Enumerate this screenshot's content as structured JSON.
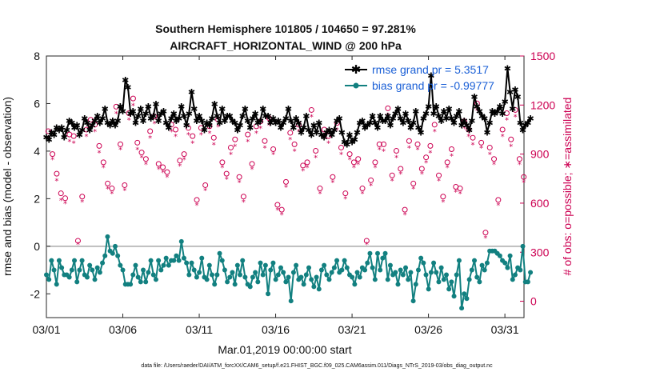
{
  "chart_data": {
    "type": "line",
    "title_line1": "Southern Hemisphere 101805 / 104650 = 97.281%",
    "title_line2": "AIRCRAFT_HORIZONTAL_WIND @ 200 hPa",
    "xlabel": "Mar.01,2019 00:00:00 start",
    "ylabel": "rmse and bias (model - observation)",
    "y2label": "# of obs: o=possible; ∗=assimilated",
    "footnote": "data file: /Users/raeder/DAI/ATM_forcXX/CAM6_setup/f.e21.FHIST_BGC.f09_025.CAM6assim.011/Diags_NTrS_2019-03/obs_diag_output.nc",
    "x_range": [
      0,
      31.25
    ],
    "ylim": [
      -3,
      8
    ],
    "y2lim": [
      -100,
      1500
    ],
    "x_tick_labels": [
      "03/01",
      "03/06",
      "03/11",
      "03/16",
      "03/21",
      "03/26",
      "03/31"
    ],
    "x_tick_days": [
      0,
      5,
      10,
      15,
      20,
      25,
      30
    ],
    "y_ticks": [
      "-2",
      "0",
      "2",
      "4",
      "6",
      "8"
    ],
    "y_tick_values": [
      -2,
      0,
      2,
      4,
      6,
      8
    ],
    "y2_ticks": [
      "0",
      "300",
      "600",
      "900",
      "1200",
      "1500"
    ],
    "y2_tick_values": [
      0,
      300,
      600,
      900,
      1200,
      1500
    ],
    "colors": {
      "rmse": "#000000",
      "bias": "#128080",
      "obs": "#cc0052",
      "legend_text": "#1a5fd6",
      "zero_line": "#aaaaaa"
    },
    "series": [
      {
        "name": "rmse grand pr = 5.3517",
        "values": [
          4.6,
          4.5,
          4.8,
          4.7,
          5.0,
          4.9,
          5.0,
          4.6,
          4.9,
          5.3,
          5.2,
          5.0,
          5.1,
          4.7,
          4.9,
          5.4,
          5.2,
          4.9,
          5.1,
          5.3,
          5.5,
          5.2,
          5.4,
          5.8,
          5.2,
          5.1,
          5.3,
          5.1,
          5.3,
          5.9,
          5.7,
          7.0,
          6.7,
          5.6,
          5.7,
          5.2,
          5.5,
          5.8,
          5.3,
          5.6,
          5.9,
          5.4,
          5.5,
          6.0,
          5.3,
          5.6,
          5.7,
          5.2,
          5.0,
          5.4,
          5.6,
          5.3,
          5.4,
          5.9,
          5.5,
          5.1,
          5.6,
          6.5,
          5.8,
          5.3,
          5.5,
          5.3,
          4.9,
          5.2,
          5.1,
          5.4,
          6.0,
          5.5,
          5.2,
          5.8,
          5.3,
          5.5,
          5.5,
          5.3,
          5.2,
          4.9,
          5.1,
          5.5,
          5.8,
          5.3,
          5.0,
          5.4,
          5.6,
          5.2,
          5.3,
          5.8,
          5.5,
          5.5,
          5.2,
          5.4,
          5.2,
          5.3,
          5.0,
          5.2,
          5.4,
          5.8,
          5.3,
          5.0,
          5.4,
          5.2,
          4.8,
          5.0,
          5.5,
          4.9,
          4.7,
          5.1,
          4.8,
          5.2,
          4.7,
          4.6,
          4.8,
          4.9,
          4.7,
          4.9,
          5.3,
          5.4,
          4.8,
          4.4,
          4.3,
          4.7,
          4.4,
          4.5,
          4.8,
          5.2,
          5.3,
          5.0,
          5.1,
          5.2,
          5.5,
          5.2,
          5.0,
          5.5,
          5.3,
          5.3,
          5.5,
          5.1,
          5.4,
          5.6,
          5.8,
          5.4,
          5.2,
          5.6,
          5.3,
          5.0,
          5.2,
          5.7,
          5.0,
          4.8,
          5.4,
          5.6,
          5.9,
          7.2,
          5.6,
          5.9,
          5.5,
          5.3,
          5.7,
          5.4,
          5.8,
          5.4,
          5.2,
          5.5,
          5.7,
          5.1,
          5.3,
          5.1,
          4.9,
          5.3,
          6.3,
          5.9,
          5.7,
          5.5,
          5.4,
          4.8,
          5.2,
          5.7,
          5.6,
          5.7,
          5.9,
          5.6,
          6.1,
          7.5,
          6.5,
          5.8,
          6.6,
          6.3,
          5.2,
          4.9,
          5.1,
          5.2,
          5.4
        ],
        "sample_every_days": 0.1667
      },
      {
        "name": "bias grand pr = -0.99777",
        "values": [
          -1.2,
          -1.4,
          -0.6,
          -1.0,
          -1.6,
          -0.6,
          -0.9,
          -1.2,
          -1.2,
          -1.3,
          -1.0,
          -0.6,
          -1.5,
          -1.0,
          -0.6,
          -1.2,
          -1.3,
          -0.8,
          -1.0,
          -1.4,
          -0.9,
          -1.1,
          -0.7,
          -0.4,
          0.4,
          -0.2,
          -0.3,
          0.0,
          -0.4,
          -0.8,
          -1.0,
          -1.6,
          -1.6,
          -1.6,
          -1.2,
          -0.8,
          -1.3,
          -1.5,
          -1.0,
          -1.5,
          -1.1,
          -0.6,
          -1.2,
          -1.4,
          -0.6,
          -1.0,
          -0.8,
          -0.5,
          -0.8,
          -0.6,
          -0.6,
          -0.4,
          -0.6,
          0.2,
          -0.5,
          -0.7,
          -1.2,
          -0.7,
          -1.0,
          -1.3,
          -1.1,
          -0.5,
          -1.3,
          -1.4,
          -0.8,
          -1.2,
          -1.6,
          -1.2,
          -0.3,
          -0.6,
          -1.0,
          -1.5,
          -1.3,
          -1.1,
          -1.6,
          -0.8,
          -1.2,
          -0.6,
          -1.3,
          -1.6,
          -1.7,
          -1.3,
          -1.1,
          -1.5,
          -0.7,
          -1.2,
          -0.8,
          -2.0,
          -1.0,
          -0.7,
          -1.4,
          -1.2,
          -0.9,
          -1.1,
          -1.5,
          -1.3,
          -2.3,
          -1.1,
          -0.8,
          -1.4,
          -1.3,
          -1.6,
          -1.2,
          -0.9,
          -1.4,
          -1.7,
          -1.3,
          -1.8,
          -1.0,
          -0.8,
          -1.2,
          -1.4,
          -1.1,
          -0.9,
          -0.6,
          -1.1,
          -1.0,
          -0.6,
          -0.9,
          -1.2,
          -1.3,
          -1.6,
          -1.1,
          -1.3,
          -0.9,
          -1.0,
          -0.7,
          -0.3,
          -0.9,
          -1.4,
          -0.3,
          -1.0,
          -0.5,
          -0.3,
          -1.4,
          -0.8,
          -1.2,
          -1.1,
          -1.6,
          -1.0,
          -1.2,
          -0.9,
          -1.4,
          -1.1,
          -2.3,
          -1.6,
          -1.0,
          -0.5,
          -0.7,
          -1.2,
          -1.8,
          -1.1,
          -0.7,
          -1.1,
          -1.5,
          -0.9,
          -1.4,
          -1.2,
          -1.8,
          -1.5,
          -2.1,
          -1.2,
          -0.6,
          -2.6,
          -2.0,
          -2.2,
          -1.4,
          -1.0,
          -0.6,
          -1.3,
          -1.5,
          -0.8,
          -1.0,
          -0.7,
          -0.2,
          -0.2,
          -0.2,
          -0.3,
          -0.4,
          -0.6,
          -0.7,
          -0.9,
          -0.4,
          -1.4,
          -1.2,
          -0.9,
          -1.0,
          0.0,
          -1.5,
          -1.5,
          -1.1
        ],
        "sample_every_days": 0.1667
      }
    ],
    "obs_possible": [
      1040,
      900,
      780,
      660,
      630,
      1020,
      1010,
      370,
      640,
      1050,
      1110,
      1080,
      950,
      850,
      720,
      690,
      1190,
      960,
      710,
      1150,
      1240,
      970,
      910,
      870,
      1040,
      1130,
      840,
      820,
      790,
      1080,
      1050,
      860,
      900,
      1060,
      1010,
      620,
      1060,
      710,
      1070,
      1000,
      1110,
      850,
      780,
      940,
      990,
      760,
      640,
      1020,
      840,
      1070,
      1100,
      980,
      1120,
      930,
      590,
      560,
      730,
      1030,
      960,
      1080,
      830,
      850,
      1170,
      920,
      690,
      1050,
      1010,
      760,
      1090,
      940,
      660,
      900,
      850,
      870,
      690,
      370,
      740,
      850,
      960,
      960,
      1180,
      770,
      920,
      810,
      560,
      980,
      720,
      960,
      810,
      880,
      950,
      1080,
      770,
      640,
      850,
      930,
      700,
      690,
      1100,
      1050,
      1000,
      1210,
      970,
      420,
      940,
      870,
      620,
      1050,
      1150,
      990,
      1170,
      870,
      760
    ],
    "obs_assimilated": [
      1000,
      870,
      740,
      620,
      600,
      980,
      970,
      350,
      610,
      1010,
      1070,
      1040,
      910,
      820,
      690,
      660,
      1150,
      930,
      680,
      1110,
      1200,
      930,
      880,
      840,
      1000,
      1090,
      810,
      790,
      760,
      1040,
      1010,
      830,
      870,
      1020,
      970,
      590,
      1020,
      680,
      1030,
      960,
      1070,
      820,
      750,
      900,
      950,
      730,
      610,
      980,
      810,
      1030,
      1060,
      940,
      1080,
      900,
      560,
      530,
      700,
      990,
      920,
      1040,
      800,
      820,
      1130,
      880,
      660,
      1010,
      970,
      730,
      1050,
      900,
      630,
      870,
      820,
      840,
      660,
      350,
      710,
      820,
      930,
      920,
      1140,
      740,
      880,
      780,
      530,
      940,
      690,
      930,
      780,
      850,
      910,
      1040,
      740,
      610,
      820,
      890,
      670,
      660,
      1060,
      1010,
      960,
      1170,
      940,
      390,
      900,
      840,
      590,
      1010,
      1110,
      950,
      1130,
      840,
      730
    ],
    "obs_sample_every_days": 0.2778
  }
}
